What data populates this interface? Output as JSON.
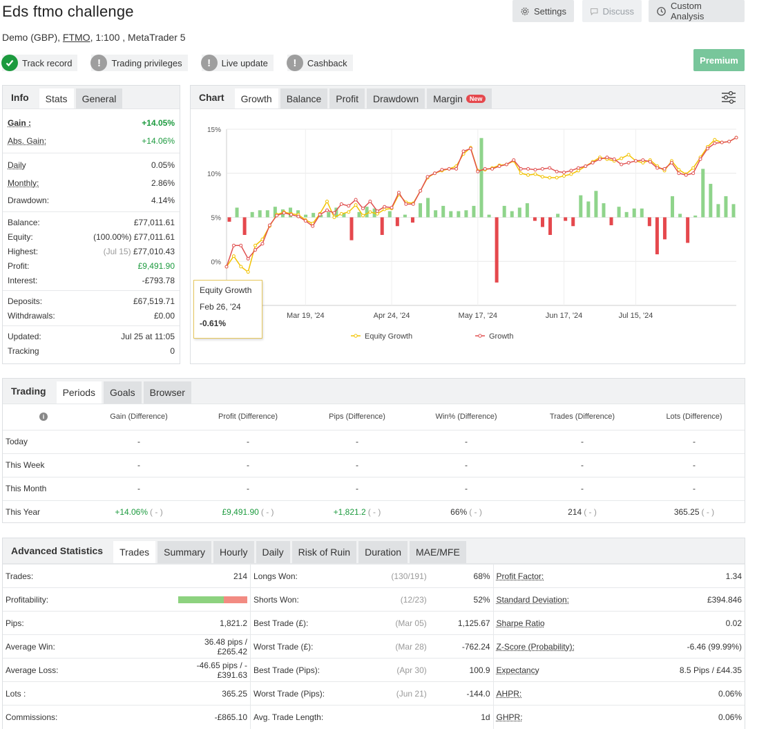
{
  "header": {
    "title": "Eds ftmo challenge",
    "account_prefix": "Demo (GBP), ",
    "broker": "FTMO",
    "account_suffix": ", 1:100 , MetaTrader 5",
    "settings_label": "Settings",
    "discuss_label": "Discuss",
    "custom_analysis_label": "Custom Analysis",
    "premium_label": "Premium"
  },
  "badges": [
    {
      "label": "Track record",
      "status": "verified",
      "color": "#1c9a3e"
    },
    {
      "label": "Trading privileges",
      "status": "unverified",
      "color": "#9e9e9e"
    },
    {
      "label": "Live update",
      "status": "unverified",
      "color": "#9e9e9e"
    },
    {
      "label": "Cashback",
      "status": "unverified",
      "color": "#9e9e9e"
    }
  ],
  "info_panel": {
    "tabs": [
      "Info",
      "Stats",
      "General"
    ],
    "gain_label": "Gain :",
    "gain_value": "+14.05%",
    "abs_gain_label": "Abs. Gain:",
    "abs_gain_value": "+14.06%",
    "daily_label": "Daily",
    "daily_value": "0.05%",
    "monthly_label": "Monthly:",
    "monthly_value": "2.86%",
    "drawdown_label": "Drawdown:",
    "drawdown_value": "4.14%",
    "balance_label": "Balance:",
    "balance_value": "£77,011.61",
    "equity_label": "Equity:",
    "equity_pct": "(100.00%)",
    "equity_value": "£77,011.61",
    "highest_label": "Highest:",
    "highest_date": "(Jul 15)",
    "highest_value": "£77,010.43",
    "profit_label": "Profit:",
    "profit_value": "£9,491.90",
    "interest_label": "Interest:",
    "interest_value": "-£793.78",
    "deposits_label": "Deposits:",
    "deposits_value": "£67,519.71",
    "withdrawals_label": "Withdrawals:",
    "withdrawals_value": "£0.00",
    "updated_label": "Updated:",
    "updated_value": "Jul 25 at 11:05",
    "tracking_label": "Tracking",
    "tracking_value": "0"
  },
  "chart_panel": {
    "tabs": [
      "Chart",
      "Growth",
      "Balance",
      "Profit",
      "Drawdown",
      "Margin"
    ],
    "new_tag": "New",
    "tooltip": {
      "title": "Equity Growth",
      "date": "Feb 26, '24",
      "value": "-0.61%"
    }
  },
  "chart_data": {
    "type": "line",
    "y_ticks": [
      "15%",
      "10%",
      "5%",
      "0%"
    ],
    "y_tick_values": [
      15,
      10,
      5,
      0
    ],
    "ylim": [
      -5,
      15
    ],
    "x_ticks": [
      "Mar 19, '24",
      "Apr 24, '24",
      "May 17, '24",
      "Jun 17, '24",
      "Jul 15, '24"
    ],
    "x_tick_index": [
      11,
      23,
      35,
      47,
      57
    ],
    "legend": [
      "Equity Growth",
      "Growth"
    ],
    "colors": {
      "equity": "#f2c200",
      "growth": "#e05050",
      "bar_pos": "#8fd48b",
      "bar_neg": "#e5484d"
    },
    "series": [
      {
        "name": "Growth",
        "values": [
          -0.61,
          1.8,
          1.8,
          0.3,
          1.3,
          2.0,
          4.1,
          5.2,
          5.5,
          5.3,
          5.1,
          4.6,
          4.0,
          5.3,
          5.8,
          5.5,
          6.5,
          6.3,
          7.0,
          6.0,
          6.8,
          5.7,
          6.2,
          6.1,
          7.8,
          6.5,
          6.5,
          8.0,
          9.6,
          10.0,
          10.4,
          10.5,
          10.5,
          12.5,
          12.8,
          10.2,
          10.5,
          10.5,
          10.8,
          11.0,
          11.5,
          10.5,
          10.5,
          10.4,
          10.5,
          10.6,
          10.2,
          10.1,
          10.3,
          10.6,
          10.8,
          11.2,
          11.6,
          11.8,
          11.6,
          11.0,
          11.2,
          11.4,
          11.5,
          11.3,
          10.6,
          10.5,
          11.2,
          10.0,
          9.8,
          10.0,
          11.6,
          12.8,
          13.4,
          13.5,
          13.6,
          14.05
        ]
      },
      {
        "name": "Equity Growth",
        "values": [
          -0.61,
          0.6,
          -0.6,
          -1.2,
          1.8,
          2.5,
          4.0,
          5.3,
          5.6,
          5.4,
          5.3,
          4.7,
          4.3,
          5.4,
          6.8,
          5.0,
          5.4,
          5.6,
          6.4,
          5.2,
          5.6,
          5.4,
          5.9,
          6.0,
          7.6,
          6.7,
          6.6,
          8.0,
          9.5,
          10.0,
          10.3,
          10.5,
          10.8,
          12.2,
          12.9,
          10.3,
          10.4,
          10.6,
          10.9,
          11.0,
          11.4,
          10.0,
          9.8,
          9.9,
          9.6,
          9.5,
          9.5,
          9.7,
          9.9,
          10.3,
          10.8,
          11.3,
          11.8,
          11.6,
          11.4,
          11.7,
          12.1,
          11.4,
          11.2,
          11.5,
          10.8,
          10.3,
          11.4,
          10.4,
          9.9,
          10.6,
          11.8,
          13.0,
          13.8,
          13.5,
          13.6,
          14.05
        ]
      }
    ],
    "bars": [
      -0.5,
      1.1,
      -2.0,
      0.6,
      0.8,
      0.8,
      1.2,
      0.9,
      1.1,
      0.8,
      0.3,
      0.5,
      0.3,
      0.6,
      1.1,
      0.5,
      -2.6,
      0.6,
      1.2,
      1.0,
      -2.0,
      0.7,
      -1.0,
      0.3,
      -0.6,
      1.6,
      2.2,
      0.8,
      1.3,
      0.7,
      0.7,
      0.8,
      1.3,
      9.0,
      0.3,
      -7.4,
      1.3,
      0.7,
      1.1,
      1.6,
      -0.4,
      -1.1,
      -2.0,
      0.4,
      -0.4,
      -1.0,
      2.5,
      1.8,
      3.0,
      1.6,
      -0.9,
      1.2,
      0.6,
      1.0,
      1.0,
      -1.0,
      -4.2,
      -2.5,
      2.4,
      0.4,
      -2.9,
      0.2,
      5.5,
      3.8,
      1.5,
      2.4,
      1.5
    ]
  },
  "periods": {
    "tabs": [
      "Trading",
      "Periods",
      "Goals",
      "Browser"
    ],
    "columns": [
      "Gain (Difference)",
      "Profit (Difference)",
      "Pips (Difference)",
      "Win% (Difference)",
      "Trades (Difference)",
      "Lots (Difference)"
    ],
    "rows": [
      {
        "label": "Today",
        "values": [
          "-",
          "-",
          "-",
          "-",
          "-",
          "-"
        ],
        "diffs": [
          "",
          "",
          "",
          "",
          "",
          ""
        ]
      },
      {
        "label": "This Week",
        "values": [
          "-",
          "-",
          "-",
          "-",
          "-",
          "-"
        ],
        "diffs": [
          "",
          "",
          "",
          "",
          "",
          ""
        ]
      },
      {
        "label": "This Month",
        "values": [
          "-",
          "-",
          "-",
          "-",
          "-",
          "-"
        ],
        "diffs": [
          "",
          "",
          "",
          "",
          "",
          ""
        ]
      },
      {
        "label": "This Year",
        "values": [
          "+14.06%",
          "£9,491.90",
          "+1,821.2",
          "66%",
          "214",
          "365.25"
        ],
        "diffs": [
          "( - )",
          "( - )",
          "( - )",
          "( - )",
          "( - )",
          "( - )"
        ]
      }
    ]
  },
  "advanced": {
    "tabs": [
      "Advanced Statistics",
      "Trades",
      "Summary",
      "Hourly",
      "Daily",
      "Risk of Ruin",
      "Duration",
      "MAE/MFE"
    ],
    "profitability_pct": 66,
    "rows": [
      {
        "l1": "Trades:",
        "v1": "214",
        "l2": "Longs Won:",
        "d2": "(130/191)",
        "v2": "68%",
        "l3": "Profit Factor:",
        "v3": "1.34"
      },
      {
        "l1": "Profitability:",
        "v1": "",
        "l2": "Shorts Won:",
        "d2": "(12/23)",
        "v2": "52%",
        "l3": "Standard Deviation:",
        "v3": "£394.846"
      },
      {
        "l1": "Pips:",
        "v1": "1,821.2",
        "l2": "Best Trade (£):",
        "d2": "(Mar 05)",
        "v2": "1,125.67",
        "l3": "Sharpe Ratio",
        "v3": "0.02"
      },
      {
        "l1": "Average Win:",
        "v1": "36.48 pips / £265.42",
        "l2": "Worst Trade (£):",
        "d2": "(Mar 28)",
        "v2": "-762.24",
        "l3": "Z-Score (Probability):",
        "v3": "-6.46 (99.99%)"
      },
      {
        "l1": "Average Loss:",
        "v1": "-46.65 pips / -£391.63",
        "l2": "Best Trade (Pips):",
        "d2": "(Apr 30)",
        "v2": "100.9",
        "l3": "Expectancy",
        "v3": "8.5 Pips / £44.35"
      },
      {
        "l1": "Lots :",
        "v1": "365.25",
        "l2": "Worst Trade (Pips):",
        "d2": "(Jun 21)",
        "v2": "-144.0",
        "l3": "AHPR:",
        "v3": "0.06%"
      },
      {
        "l1": "Commissions:",
        "v1": "-£865.10",
        "l2": "Avg. Trade Length:",
        "d2": "",
        "v2": "1d",
        "l3": "GHPR:",
        "v3": "0.06%"
      }
    ]
  }
}
